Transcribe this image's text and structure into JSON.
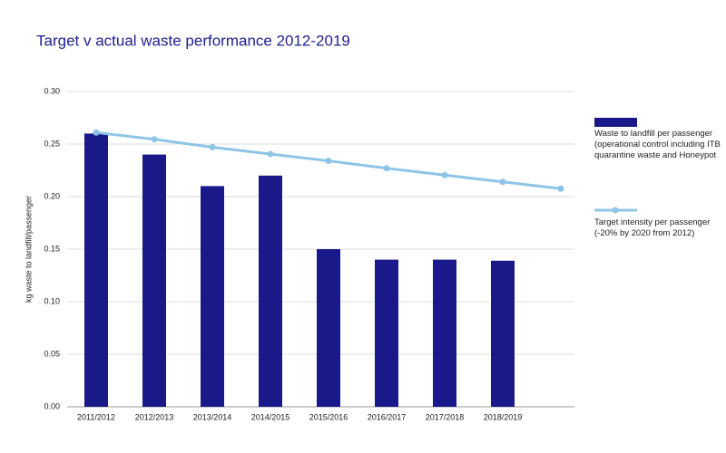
{
  "chart_data": {
    "type": "bar_line",
    "title": "Target v actual waste performance 2012-2019",
    "y_label": "kg waste to landfill/passenger",
    "categories": [
      "2011/2012",
      "2012/2013",
      "2013/2014",
      "2014/2015",
      "2015/2016",
      "2016/2017",
      "2017/2018",
      "2018/2019",
      null
    ],
    "series": [
      {
        "name": "Waste to landfill per passenger (operational control including ITB quarantine waste and Honeypot",
        "type": "bar",
        "color": "#19198a",
        "values": [
          0.26,
          0.24,
          0.21,
          0.22,
          0.15,
          0.14,
          0.14,
          0.139,
          null
        ]
      },
      {
        "name": "Target intensity per passenger (-20% by 2020 from 2012)",
        "type": "line",
        "color": "#8ec5e6",
        "values": [
          0.261,
          0.2545,
          0.247,
          0.2405,
          0.234,
          0.227,
          0.2205,
          0.214,
          0.2075
        ]
      }
    ],
    "ylim": [
      0,
      0.3
    ],
    "yticks": [
      {
        "value": 0,
        "label": "0.00"
      },
      0.05,
      {
        "value": 0.1,
        "label": "0.10"
      },
      0.15,
      {
        "value": 0.2,
        "label": "0.20"
      },
      0.25,
      {
        "value": 0.3,
        "label": "0.30"
      }
    ],
    "grid": true,
    "legend": "right"
  }
}
